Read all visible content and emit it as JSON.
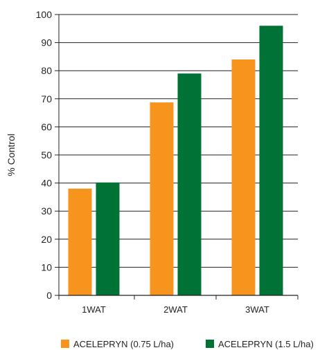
{
  "chart_data": {
    "type": "bar",
    "title": "",
    "xlabel": "",
    "ylabel": "% Control",
    "ylim": [
      0,
      100
    ],
    "yticks": [
      0,
      10,
      20,
      30,
      40,
      50,
      60,
      70,
      80,
      90,
      100
    ],
    "grid": true,
    "legend_position": "bottom",
    "categories": [
      "1WAT",
      "2WAT",
      "3WAT"
    ],
    "series": [
      {
        "name": "ACELEPRYN (0.75 L/ha)",
        "color": "#f7941d",
        "values": [
          38,
          68.7,
          84
        ]
      },
      {
        "name": "ACELEPRYN (1.5 L/ha)",
        "color": "#007236",
        "values": [
          40.2,
          79,
          96
        ]
      }
    ]
  }
}
